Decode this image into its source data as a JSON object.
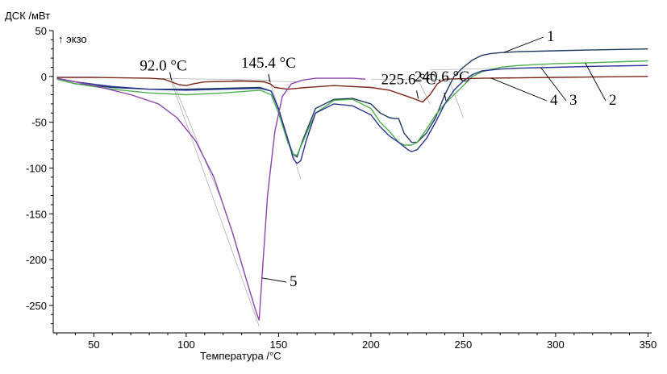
{
  "chart_data": {
    "type": "line",
    "ylabel": "ДСК /мВт",
    "exo_label": "↑ экзо",
    "xlabel": "Температура /°C",
    "xlim": [
      28,
      352
    ],
    "ylim": [
      -280,
      50
    ],
    "grid": false,
    "xticks": [
      50,
      100,
      150,
      200,
      250,
      300,
      350
    ],
    "yticks": [
      50,
      0,
      -50,
      -100,
      -150,
      -200,
      -250
    ],
    "series": [
      {
        "name": "1",
        "color": "#1e3a5f",
        "x": [
          30,
          40,
          60,
          80,
          100,
          120,
          140,
          146,
          150,
          155,
          158,
          160,
          163,
          170,
          180,
          190,
          200,
          205,
          210,
          213,
          215,
          218,
          222,
          225,
          230,
          235,
          240,
          245,
          250,
          255,
          260,
          265,
          270,
          280,
          300,
          320,
          350
        ],
        "y": [
          -3,
          -8,
          -12,
          -14,
          -14,
          -13,
          -12,
          -16,
          -35,
          -70,
          -85,
          -88,
          -70,
          -35,
          -25,
          -24,
          -30,
          -40,
          -45,
          -46,
          -46,
          -62,
          -72,
          -72,
          -62,
          -45,
          -20,
          0,
          10,
          18,
          23,
          25,
          26,
          27,
          28,
          29,
          30
        ]
      },
      {
        "name": "2",
        "color": "#4caf50",
        "x": [
          30,
          40,
          60,
          80,
          100,
          120,
          140,
          146,
          150,
          155,
          158,
          160,
          163,
          170,
          180,
          190,
          200,
          205,
          210,
          215,
          218,
          222,
          225,
          230,
          235,
          240,
          245,
          250,
          255,
          260,
          270,
          280,
          300,
          320,
          350
        ],
        "y": [
          -3,
          -8,
          -14,
          -18,
          -20,
          -18,
          -15,
          -20,
          -40,
          -72,
          -85,
          -86,
          -72,
          -40,
          -26,
          -25,
          -35,
          -50,
          -60,
          -72,
          -75,
          -75,
          -72,
          -58,
          -42,
          -30,
          -20,
          -10,
          0,
          5,
          10,
          12,
          14,
          15,
          17
        ]
      },
      {
        "name": "3",
        "color": "#283593",
        "x": [
          30,
          40,
          60,
          80,
          100,
          120,
          140,
          146,
          150,
          155,
          158,
          160,
          162,
          165,
          170,
          180,
          190,
          200,
          205,
          210,
          215,
          220,
          222,
          225,
          230,
          235,
          240,
          245,
          250,
          255,
          260,
          270,
          280,
          300,
          320,
          350
        ],
        "y": [
          -2,
          -6,
          -11,
          -14,
          -15,
          -14,
          -13,
          -16,
          -36,
          -68,
          -90,
          -95,
          -92,
          -70,
          -40,
          -30,
          -32,
          -42,
          -55,
          -65,
          -72,
          -80,
          -82,
          -80,
          -68,
          -50,
          -30,
          -15,
          -5,
          2,
          6,
          8,
          9,
          10,
          11,
          12
        ]
      },
      {
        "name": "4",
        "color": "#7b2518",
        "x": [
          30,
          50,
          80,
          88,
          92,
          96,
          100,
          104,
          110,
          130,
          142,
          145.4,
          148,
          155,
          165,
          180,
          200,
          210,
          220,
          225.6,
          228,
          232,
          236,
          240,
          260,
          300,
          350
        ],
        "y": [
          -1,
          -1,
          -2,
          -3,
          -6,
          -9,
          -10,
          -8,
          -6,
          -5,
          -6,
          -8,
          -12,
          -14,
          -12,
          -10,
          -12,
          -15,
          -22,
          -26,
          -28,
          -20,
          -8,
          -3,
          -2,
          -1,
          0
        ]
      },
      {
        "name": "5",
        "color": "#8e44ad",
        "x": [
          30,
          50,
          70,
          85,
          95,
          105,
          115,
          125,
          133,
          138,
          139.5,
          141,
          144,
          148,
          152,
          157,
          163,
          170,
          180,
          190,
          197
        ],
        "y": [
          -2,
          -10,
          -20,
          -30,
          -45,
          -70,
          -110,
          -170,
          -225,
          -258,
          -266,
          -220,
          -130,
          -60,
          -22,
          -8,
          -4,
          -2,
          -2,
          -2,
          -3
        ]
      }
    ],
    "onset_annotations": [
      {
        "label": "92.0 °C",
        "x": 92.0
      },
      {
        "label": "145.4 °C",
        "x": 145.4
      },
      {
        "label": "225.6 °C",
        "x": 225.6
      },
      {
        "label": "240.6 °C",
        "x": 240.6
      }
    ]
  }
}
